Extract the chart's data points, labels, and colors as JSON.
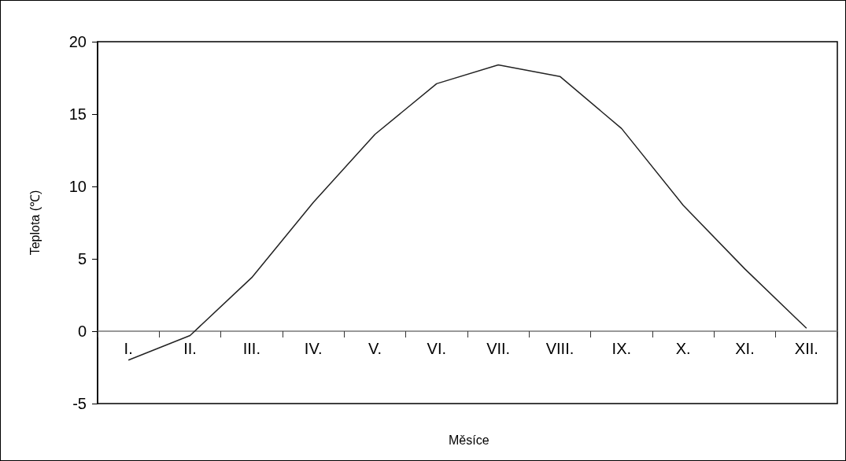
{
  "chart_data": {
    "type": "line",
    "xlabel": "Měsíce",
    "ylabel": "Teplota (℃)",
    "categories": [
      "I.",
      "II.",
      "III.",
      "IV.",
      "V.",
      "VI.",
      "VII.",
      "VIII.",
      "IX.",
      "X.",
      "XI.",
      "XII."
    ],
    "series": [
      {
        "color": "#222222",
        "values": [
          -2.0,
          -0.3,
          3.7,
          8.9,
          13.6,
          17.1,
          18.4,
          17.6,
          14.0,
          8.7,
          4.3,
          0.2
        ]
      }
    ],
    "ylim": [
      -5,
      20
    ],
    "yticks": [
      -5,
      0,
      5,
      10,
      15,
      20
    ],
    "grid": false,
    "marker": "none",
    "line_style": "solid"
  }
}
